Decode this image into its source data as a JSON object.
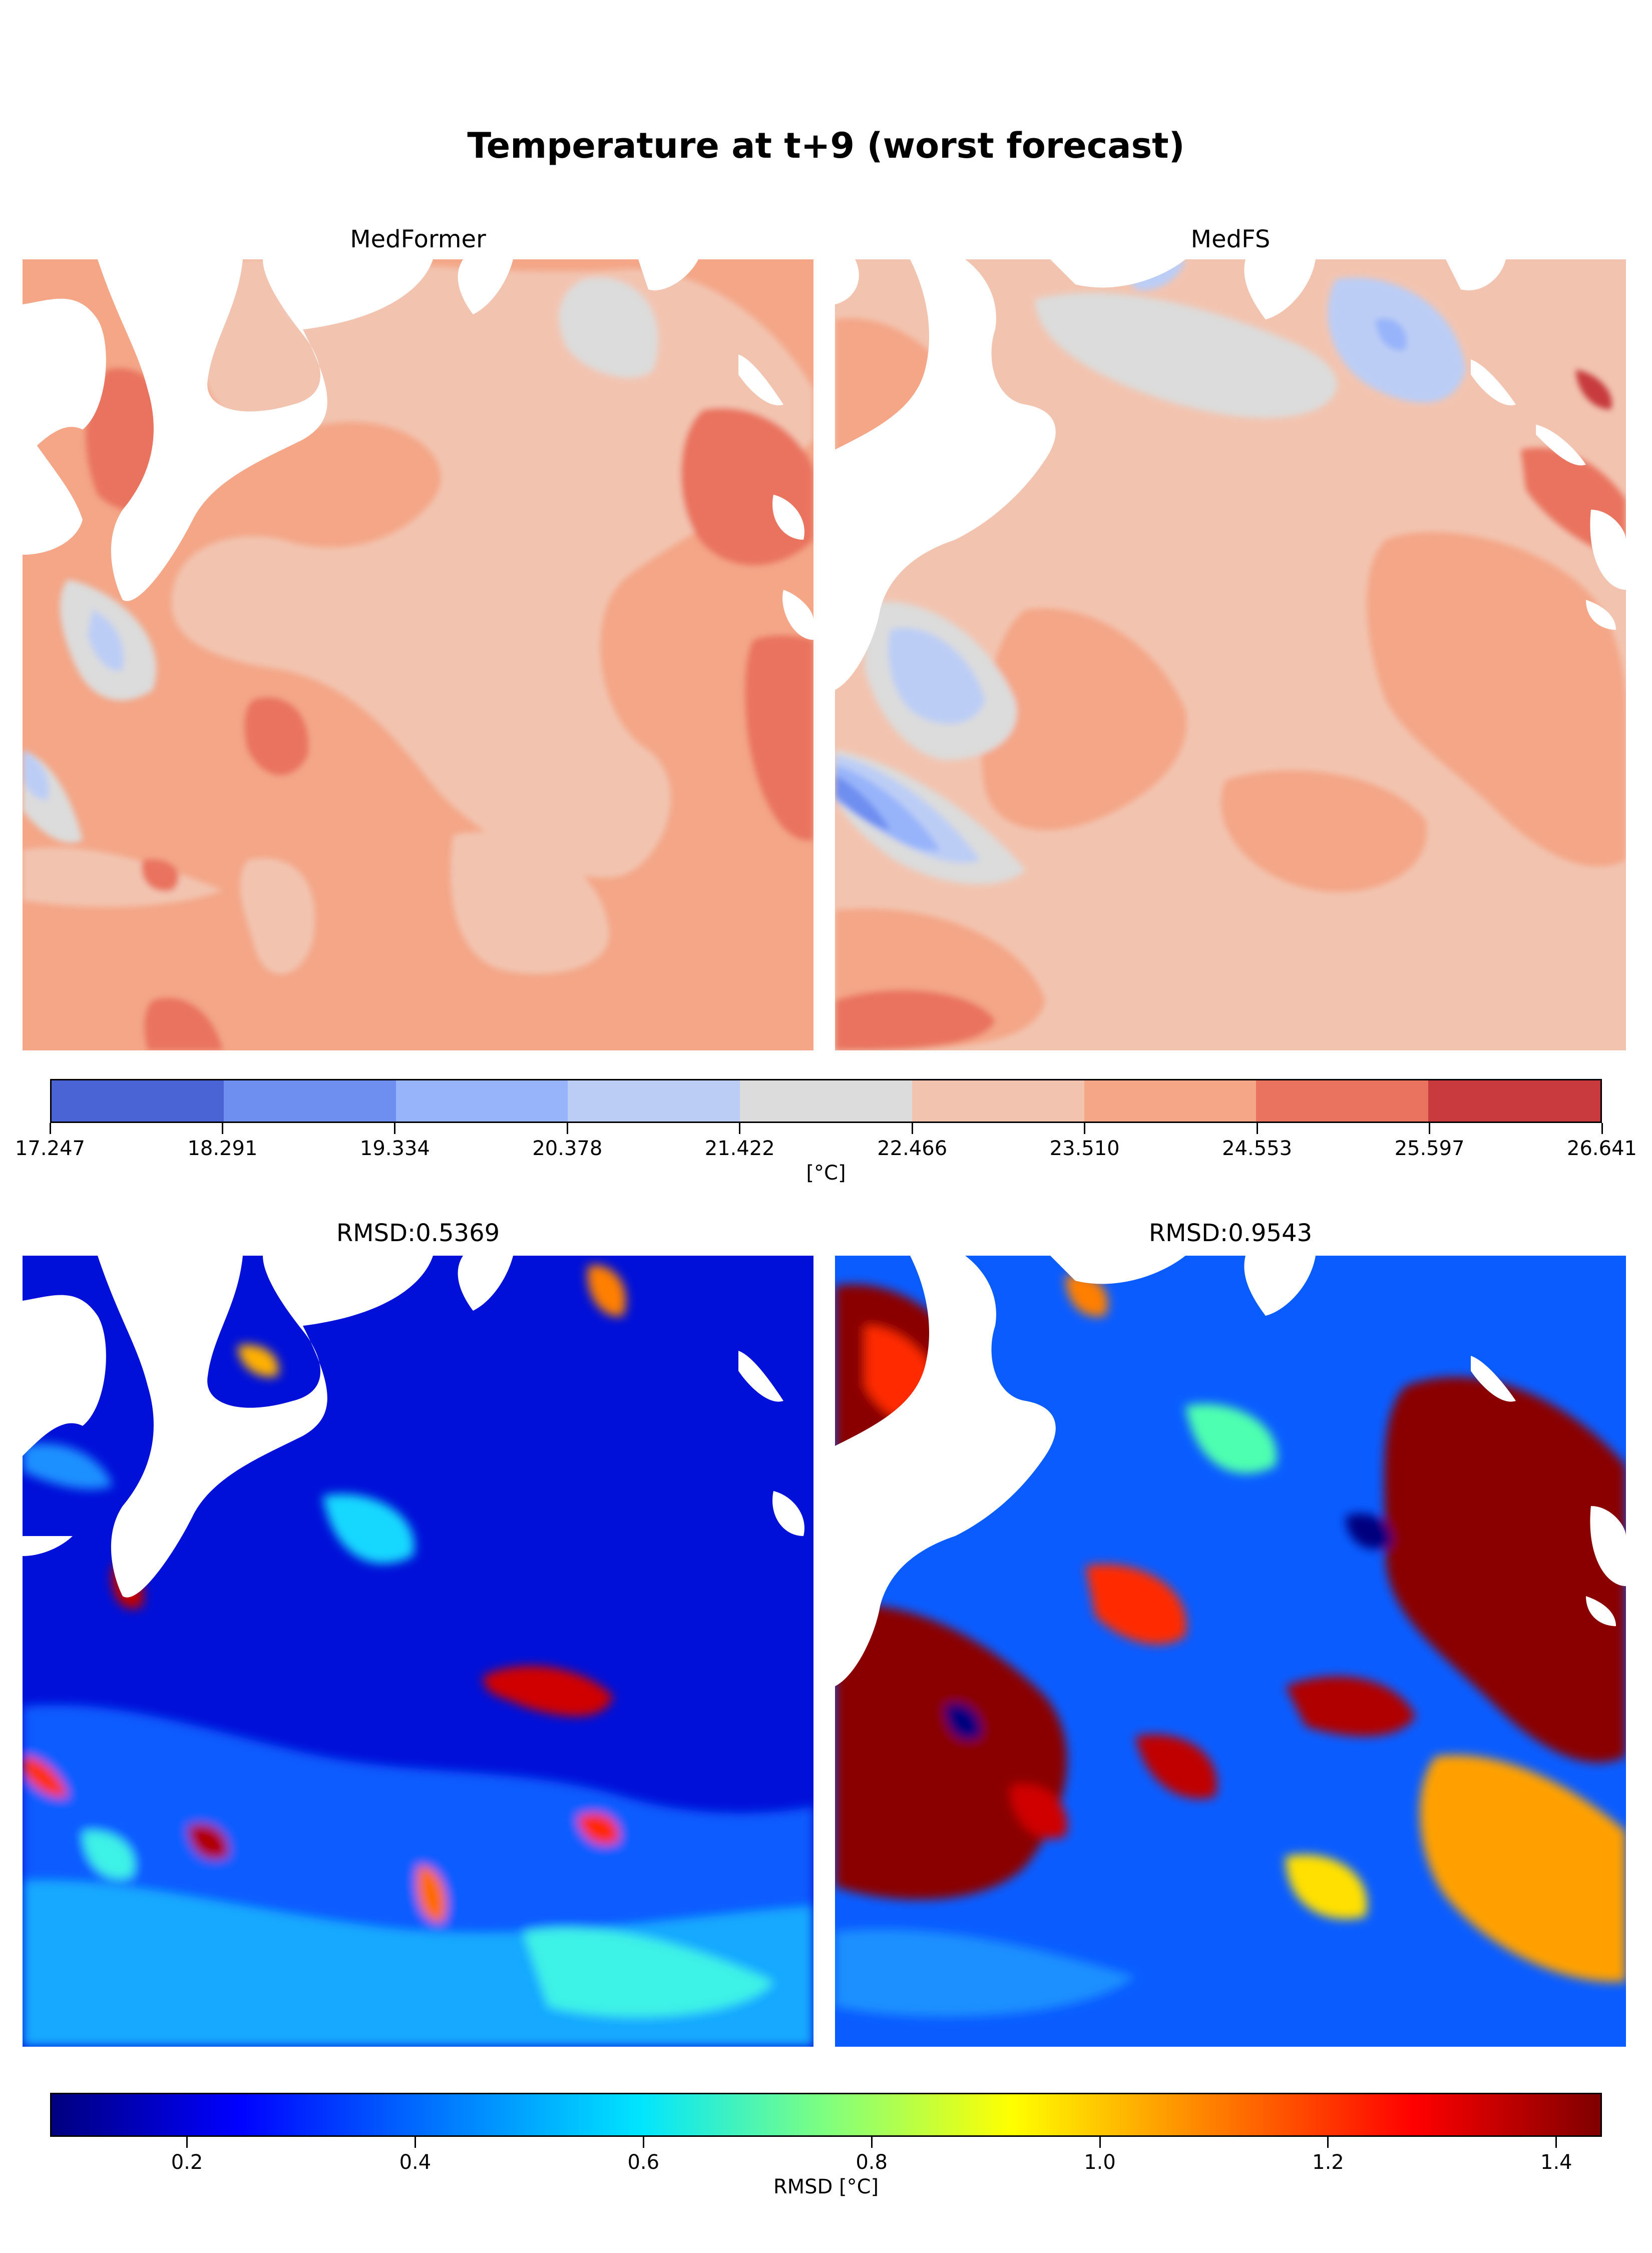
{
  "title": "Temperature at t+9 (worst forecast)",
  "panels": {
    "medformer": "MedFormer",
    "medfs": "MedFS",
    "rmsd_medformer": "RMSD:0.5369",
    "rmsd_medfs": "RMSD:0.9543"
  },
  "chart_data": [
    {
      "type": "heatmap",
      "title": "MedFormer",
      "variable": "Temperature",
      "colorbar_label": "[°C]",
      "levels": [
        17.247,
        18.291,
        19.334,
        20.378,
        21.422,
        22.466,
        23.51,
        24.553,
        25.597,
        26.641
      ],
      "level_labels": [
        "17.247",
        "18.291",
        "19.334",
        "20.378",
        "21.422",
        "22.466",
        "23.510",
        "24.553",
        "25.597",
        "26.641"
      ],
      "level_colors": [
        "#4a64d6",
        "#6e8ef0",
        "#97b4fa",
        "#bccdf5",
        "#dcdcdc",
        "#f2c4b0",
        "#f4a687",
        "#e9735e",
        "#c83a3d"
      ],
      "colormap": "coolwarm (discrete)"
    },
    {
      "type": "heatmap",
      "title": "MedFS",
      "variable": "Temperature",
      "colorbar_label": "[°C]",
      "levels": [
        17.247,
        18.291,
        19.334,
        20.378,
        21.422,
        22.466,
        23.51,
        24.553,
        25.597,
        26.641
      ],
      "colormap": "coolwarm (discrete)"
    },
    {
      "type": "heatmap",
      "title": "RMSD:0.5369",
      "rmsd": 0.5369,
      "colorbar_label": "RMSD [°C]",
      "colorbar_range": [
        0.08,
        1.44
      ],
      "ticks": [
        0.2,
        0.4,
        0.6,
        0.8,
        1.0,
        1.2,
        1.4
      ],
      "tick_labels": [
        "0.2",
        "0.4",
        "0.6",
        "0.8",
        "1.0",
        "1.2",
        "1.4"
      ],
      "colormap": "jet"
    },
    {
      "type": "heatmap",
      "title": "RMSD:0.9543",
      "rmsd": 0.9543,
      "colorbar_label": "RMSD [°C]",
      "colorbar_range": [
        0.08,
        1.44
      ],
      "colormap": "jet"
    }
  ]
}
